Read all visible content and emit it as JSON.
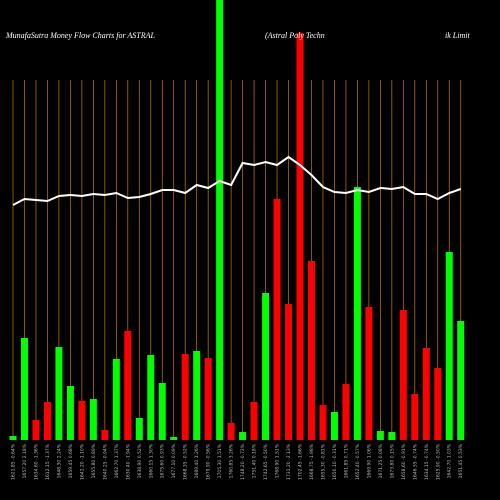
{
  "chart_data": {
    "type": "bar",
    "title": "MunafaSutra  Money Flow  Charts for ASTRAL",
    "subtitle": "(Astral Poly Techn",
    "subtitle_tail": "ik Limit",
    "categories": [
      "1621.85 -0.64%",
      "1657.20 2.18%",
      "1634.60 -1.36%",
      "1612.15 -1.37%",
      "1648.30 2.24%",
      "1659.45 0.68%",
      "1641.20 -1.10%",
      "1655.80 0.89%",
      "1640.25 -0.94%",
      "1662.70 1.37%",
      "1630.40 -1.94%",
      "1638.90 0.52%",
      "1660.15 1.30%",
      "1675.60 0.93%",
      "1677.10 0.09%",
      "1668.35 -0.52%",
      "1689.40 1.26%",
      "1679.90 -0.56%",
      "1705.30 1.51%",
      "1760.85 3.26%",
      "1748.20 -0.72%",
      "1751.40 0.18%",
      "1742.65 -0.50%",
      "1768.90 1.51%",
      "1731.20 -2.13%",
      "1702.45 -1.66%",
      "1668.75 -1.98%",
      "1655.30 -0.81%",
      "1650.10 -0.31%",
      "1661.85 0.71%",
      "1652.40 -0.57%",
      "1669.90 1.06%",
      "1671.25 0.08%",
      "1673.80 0.15%",
      "1658.60 -0.91%",
      "1646.35 -0.74%",
      "1634.15 -0.74%",
      "1625.90 -0.50%",
      "1642.70 1.03%",
      "1651.45 0.53%"
    ],
    "values": [
      4,
      102,
      20,
      38,
      93,
      54,
      39,
      41,
      10,
      81,
      109,
      22,
      85,
      57,
      3,
      86,
      89,
      82,
      440,
      17,
      8,
      38,
      147,
      241,
      136,
      407,
      179,
      35,
      28,
      56,
      253,
      133,
      9,
      8,
      130,
      46,
      92,
      72,
      188,
      119
    ],
    "colors": [
      "#00ff00",
      "#00ff00",
      "#ff0000",
      "#ff0000",
      "#00ff00",
      "#00ff00",
      "#ff0000",
      "#00ff00",
      "#ff0000",
      "#00ff00",
      "#ff0000",
      "#00ff00",
      "#00ff00",
      "#00ff00",
      "#00ff00",
      "#ff0000",
      "#00ff00",
      "#ff0000",
      "#00ff00",
      "#ff0000",
      "#00ff00",
      "#ff0000",
      "#00ff00",
      "#ff0000",
      "#ff0000",
      "#ff0000",
      "#ff0000",
      "#ff0000",
      "#00ff00",
      "#ff0000",
      "#00ff00",
      "#ff0000",
      "#00ff00",
      "#00ff00",
      "#ff0000",
      "#ff0000",
      "#ff0000",
      "#ff0000",
      "#00ff00",
      "#00ff00"
    ],
    "line": {
      "color": "#ffffff",
      "values": [
        235,
        241,
        240,
        239,
        244,
        245,
        244,
        246,
        245,
        247,
        242,
        243,
        246,
        250,
        250,
        247,
        255,
        252,
        259,
        255,
        277,
        275,
        278,
        275,
        283,
        275,
        265,
        253,
        248,
        247,
        250,
        248,
        252,
        251,
        253,
        246,
        246,
        241,
        247,
        251
      ]
    },
    "ylim": [
      0,
      440
    ],
    "grid_color": "#cc7a00"
  }
}
